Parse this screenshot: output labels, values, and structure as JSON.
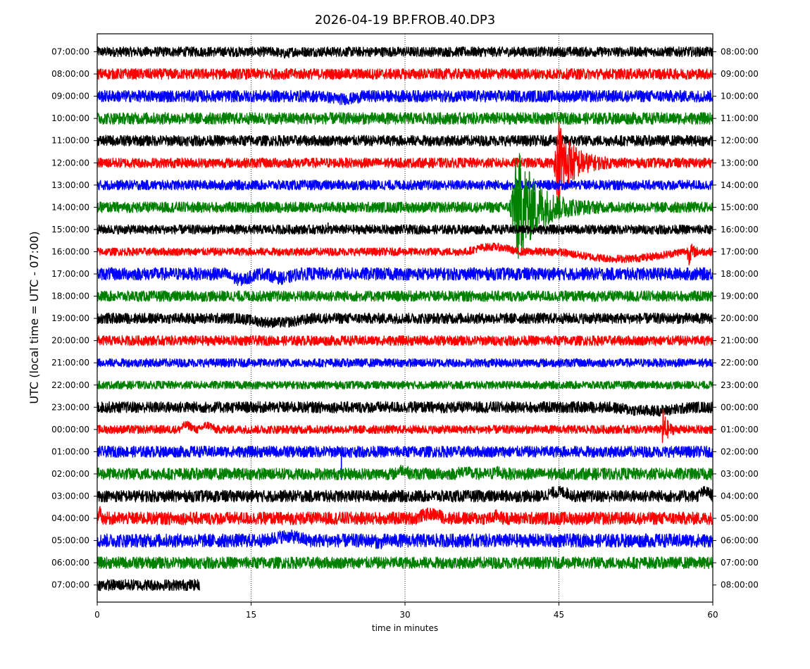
{
  "chart_data": {
    "type": "line",
    "title": "2026-04-19 BP.FROB.40.DP3",
    "xlabel": "time in minutes",
    "ylabel": "UTC (local time = UTC - 07:00)",
    "xlim": [
      0,
      60
    ],
    "x_ticks": [
      0,
      15,
      30,
      45,
      60
    ],
    "x_tick_labels": [
      "0",
      "15",
      "30",
      "45",
      "60"
    ],
    "grid": "vertical dotted lines at 15, 30, 45",
    "trace_colors": [
      "#000000",
      "#ff0000",
      "#0000ff",
      "#008000"
    ],
    "left_tick_labels": [
      "07:00:00",
      "08:00:00",
      "09:00:00",
      "10:00:00",
      "11:00:00",
      "12:00:00",
      "13:00:00",
      "14:00:00",
      "15:00:00",
      "16:00:00",
      "17:00:00",
      "18:00:00",
      "19:00:00",
      "20:00:00",
      "21:00:00",
      "22:00:00",
      "23:00:00",
      "00:00:00",
      "01:00:00",
      "02:00:00",
      "03:00:00",
      "04:00:00",
      "05:00:00",
      "06:00:00",
      "07:00:00"
    ],
    "right_tick_labels": [
      "08:00:00",
      "09:00:00",
      "10:00:00",
      "11:00:00",
      "12:00:00",
      "13:00:00",
      "14:00:00",
      "15:00:00",
      "16:00:00",
      "17:00:00",
      "18:00:00",
      "19:00:00",
      "20:00:00",
      "21:00:00",
      "22:00:00",
      "23:00:00",
      "00:00:00",
      "01:00:00",
      "02:00:00",
      "03:00:00",
      "04:00:00",
      "05:00:00",
      "06:00:00",
      "07:00:00",
      "08:00:00"
    ],
    "traces": [
      {
        "label": "07:00:00",
        "color": "#000000",
        "amp": 0.35,
        "end": 60,
        "events": [
          {
            "t": 17.5,
            "type": "step",
            "dy": -0.15,
            "dur": 1.5
          }
        ]
      },
      {
        "label": "08:00:00",
        "color": "#ff0000",
        "amp": 0.38,
        "end": 60,
        "events": []
      },
      {
        "label": "09:00:00",
        "color": "#0000ff",
        "amp": 0.42,
        "end": 60,
        "events": [
          {
            "t": 22,
            "type": "step",
            "dy": -0.2,
            "dur": 4
          }
        ]
      },
      {
        "label": "10:00:00",
        "color": "#008000",
        "amp": 0.42,
        "end": 60,
        "events": []
      },
      {
        "label": "11:00:00",
        "color": "#000000",
        "amp": 0.38,
        "end": 60,
        "events": []
      },
      {
        "label": "12:00:00",
        "color": "#ff0000",
        "amp": 0.35,
        "end": 60,
        "events": [
          {
            "t": 44.5,
            "type": "quake",
            "peak": 3.0,
            "dur": 6
          }
        ]
      },
      {
        "label": "13:00:00",
        "color": "#0000ff",
        "amp": 0.35,
        "end": 60,
        "events": []
      },
      {
        "label": "14:00:00",
        "color": "#008000",
        "amp": 0.38,
        "end": 60,
        "events": [
          {
            "t": 40.2,
            "type": "quake",
            "peak": 4.0,
            "dur": 9
          }
        ]
      },
      {
        "label": "15:00:00",
        "color": "#000000",
        "amp": 0.33,
        "end": 60,
        "events": [
          {
            "t": 22.5,
            "type": "spike",
            "dy": 0.5
          }
        ]
      },
      {
        "label": "16:00:00",
        "color": "#ff0000",
        "amp": 0.28,
        "end": 60,
        "events": [
          {
            "t": 36,
            "type": "step",
            "dy": 0.35,
            "dur": 5
          },
          {
            "t": 45,
            "type": "step",
            "dy": -0.5,
            "dur": 12
          },
          {
            "t": 57.5,
            "type": "quake",
            "peak": 0.8,
            "dur": 1.5
          }
        ]
      },
      {
        "label": "17:00:00",
        "color": "#0000ff",
        "amp": 0.45,
        "end": 60,
        "events": [
          {
            "t": 12.5,
            "type": "step",
            "dy": -0.4,
            "dur": 3
          },
          {
            "t": 16.5,
            "type": "step",
            "dy": -0.3,
            "dur": 3
          }
        ]
      },
      {
        "label": "18:00:00",
        "color": "#008000",
        "amp": 0.38,
        "end": 60,
        "events": []
      },
      {
        "label": "19:00:00",
        "color": "#000000",
        "amp": 0.38,
        "end": 60,
        "events": [
          {
            "t": 14,
            "type": "step",
            "dy": -0.3,
            "dur": 7
          }
        ]
      },
      {
        "label": "20:00:00",
        "color": "#ff0000",
        "amp": 0.35,
        "end": 60,
        "events": []
      },
      {
        "label": "21:00:00",
        "color": "#0000ff",
        "amp": 0.3,
        "end": 60,
        "events": []
      },
      {
        "label": "22:00:00",
        "color": "#008000",
        "amp": 0.28,
        "end": 60,
        "events": []
      },
      {
        "label": "23:00:00",
        "color": "#000000",
        "amp": 0.4,
        "end": 60,
        "events": [
          {
            "t": 50,
            "type": "step",
            "dy": -0.25,
            "dur": 8
          }
        ]
      },
      {
        "label": "00:00:00",
        "color": "#ff0000",
        "amp": 0.3,
        "end": 60,
        "events": [
          {
            "t": 8,
            "type": "step",
            "dy": 0.3,
            "dur": 1.5
          },
          {
            "t": 10,
            "type": "step",
            "dy": 0.3,
            "dur": 1.5
          },
          {
            "t": 55,
            "type": "quake",
            "peak": 1.5,
            "dur": 1.5
          }
        ]
      },
      {
        "label": "01:00:00",
        "color": "#0000ff",
        "amp": 0.4,
        "end": 60,
        "events": [
          {
            "t": 23.8,
            "type": "spike",
            "dy": -2.0
          }
        ]
      },
      {
        "label": "02:00:00",
        "color": "#008000",
        "amp": 0.42,
        "end": 60,
        "events": [
          {
            "t": 29,
            "type": "step",
            "dy": 0.3,
            "dur": 1.5
          },
          {
            "t": 35,
            "type": "step",
            "dy": 0.2,
            "dur": 1.5
          },
          {
            "t": 38.5,
            "type": "step",
            "dy": 0.2,
            "dur": 1
          }
        ]
      },
      {
        "label": "03:00:00",
        "color": "#000000",
        "amp": 0.42,
        "end": 60,
        "events": [
          {
            "t": 43.5,
            "type": "step",
            "dy": 0.3,
            "dur": 3
          },
          {
            "t": 58.5,
            "type": "step",
            "dy": 0.3,
            "dur": 1.5
          }
        ]
      },
      {
        "label": "04:00:00",
        "color": "#ff0000",
        "amp": 0.45,
        "end": 60,
        "events": [
          {
            "t": 0,
            "type": "step",
            "dy": 0.4,
            "dur": 0.5
          },
          {
            "t": 31,
            "type": "step",
            "dy": 0.3,
            "dur": 3
          },
          {
            "t": 38.5,
            "type": "step",
            "dy": 0.2,
            "dur": 1
          }
        ]
      },
      {
        "label": "05:00:00",
        "color": "#0000ff",
        "amp": 0.48,
        "end": 60,
        "events": [
          {
            "t": 16.5,
            "type": "step",
            "dy": 0.3,
            "dur": 4
          },
          {
            "t": 27,
            "type": "step",
            "dy": -0.15,
            "dur": 1
          }
        ]
      },
      {
        "label": "06:00:00",
        "color": "#008000",
        "amp": 0.42,
        "end": 60,
        "events": []
      },
      {
        "label": "07:00:00",
        "color": "#000000",
        "amp": 0.4,
        "end": 10,
        "events": []
      }
    ]
  }
}
